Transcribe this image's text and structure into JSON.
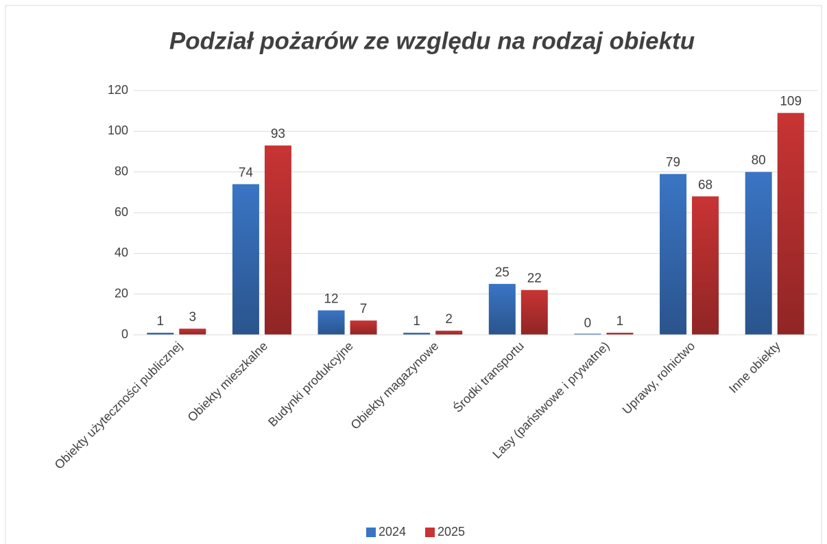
{
  "chart_data": {
    "type": "bar",
    "title": "Podział pożarów ze względu na rodzaj obiektu",
    "categories": [
      "Obiekty użyteczności publicznej",
      "Obiekty mieszkalne",
      "Budynki produkcyjne",
      "Obiekty magazynowe",
      "Środki transportu",
      "Lasy (państwowe i prywatne)",
      "Uprawy, rolnictwo",
      "Inne obiekty"
    ],
    "series": [
      {
        "name": "2024",
        "color": "#3a75c4",
        "values": [
          1,
          74,
          12,
          1,
          25,
          0,
          79,
          80
        ]
      },
      {
        "name": "2025",
        "color": "#c83434",
        "values": [
          3,
          93,
          7,
          2,
          22,
          1,
          68,
          109
        ]
      }
    ],
    "ylim": [
      0,
      120
    ],
    "yticks": [
      0,
      20,
      40,
      60,
      80,
      100,
      120
    ],
    "grid": true,
    "legend": "bottom"
  }
}
